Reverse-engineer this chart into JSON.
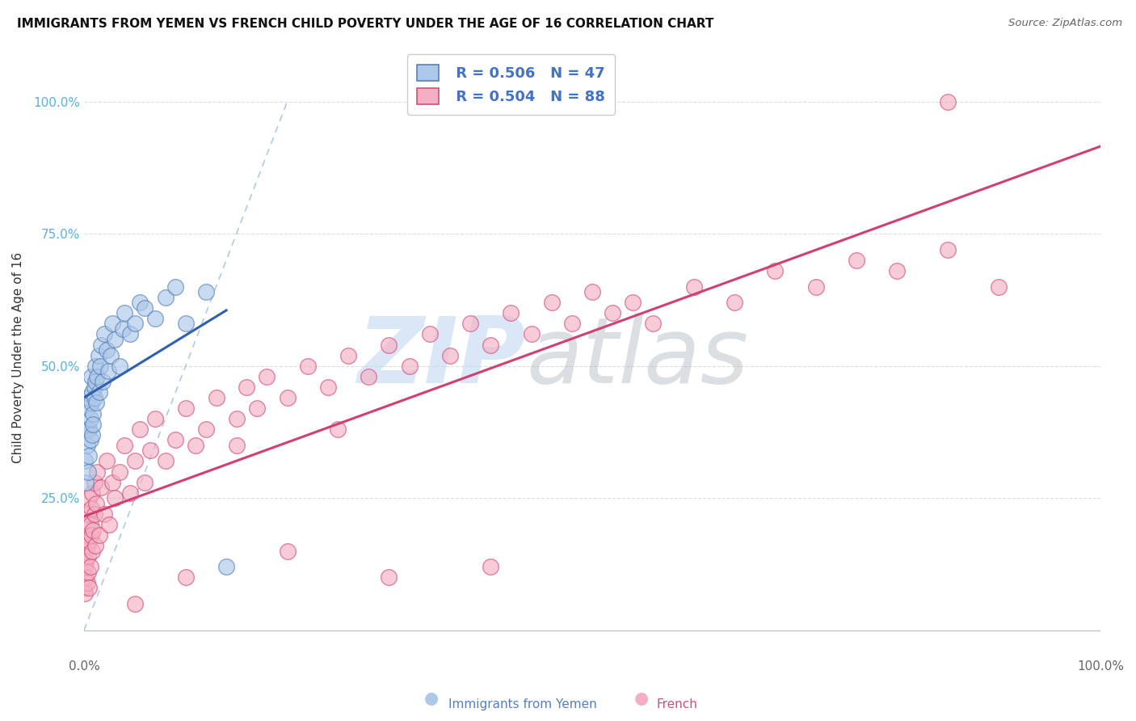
{
  "title": "IMMIGRANTS FROM YEMEN VS FRENCH CHILD POVERTY UNDER THE AGE OF 16 CORRELATION CHART",
  "source": "Source: ZipAtlas.com",
  "ylabel": "Child Poverty Under the Age of 16",
  "blue_R": 0.506,
  "blue_N": 47,
  "pink_R": 0.504,
  "pink_N": 88,
  "blue_label": "Immigrants from Yemen",
  "pink_label": "French",
  "blue_face_color": "#adc8e8",
  "pink_face_color": "#f5afc5",
  "blue_edge_color": "#5580bb",
  "pink_edge_color": "#d05078",
  "blue_line_color": "#3060b0",
  "pink_line_color": "#d04070",
  "ref_line_color": "#9ab8d8",
  "title_color": "#111111",
  "source_color": "#666666",
  "background_color": "#ffffff",
  "grid_color": "#dddddd",
  "ytick_color": "#5ab0e0",
  "legend_val_color": "#4472c4",
  "seed": 42,
  "blue_x": [
    0.001,
    0.002,
    0.002,
    0.003,
    0.003,
    0.004,
    0.004,
    0.005,
    0.005,
    0.006,
    0.006,
    0.007,
    0.007,
    0.008,
    0.008,
    0.009,
    0.009,
    0.01,
    0.01,
    0.011,
    0.011,
    0.012,
    0.013,
    0.014,
    0.015,
    0.016,
    0.017,
    0.018,
    0.02,
    0.022,
    0.024,
    0.026,
    0.028,
    0.03,
    0.035,
    0.038,
    0.04,
    0.045,
    0.05,
    0.055,
    0.06,
    0.07,
    0.08,
    0.09,
    0.1,
    0.12,
    0.14
  ],
  "blue_y": [
    0.32,
    0.38,
    0.28,
    0.42,
    0.35,
    0.3,
    0.44,
    0.38,
    0.33,
    0.4,
    0.36,
    0.43,
    0.48,
    0.37,
    0.45,
    0.41,
    0.39,
    0.46,
    0.44,
    0.5,
    0.47,
    0.43,
    0.48,
    0.52,
    0.45,
    0.5,
    0.54,
    0.47,
    0.56,
    0.53,
    0.49,
    0.52,
    0.58,
    0.55,
    0.5,
    0.57,
    0.6,
    0.56,
    0.58,
    0.62,
    0.61,
    0.59,
    0.63,
    0.65,
    0.58,
    0.64,
    0.12
  ],
  "pink_x": [
    0.0,
    0.001,
    0.001,
    0.001,
    0.002,
    0.002,
    0.002,
    0.003,
    0.003,
    0.003,
    0.004,
    0.004,
    0.004,
    0.005,
    0.005,
    0.005,
    0.006,
    0.006,
    0.007,
    0.007,
    0.008,
    0.008,
    0.009,
    0.01,
    0.01,
    0.011,
    0.012,
    0.013,
    0.015,
    0.017,
    0.02,
    0.022,
    0.025,
    0.028,
    0.03,
    0.035,
    0.04,
    0.045,
    0.05,
    0.055,
    0.06,
    0.065,
    0.07,
    0.08,
    0.09,
    0.1,
    0.11,
    0.12,
    0.13,
    0.15,
    0.16,
    0.17,
    0.18,
    0.2,
    0.22,
    0.24,
    0.26,
    0.28,
    0.3,
    0.32,
    0.34,
    0.36,
    0.38,
    0.4,
    0.42,
    0.44,
    0.46,
    0.48,
    0.5,
    0.52,
    0.54,
    0.56,
    0.6,
    0.64,
    0.68,
    0.72,
    0.76,
    0.8,
    0.85,
    0.9,
    0.1,
    0.2,
    0.4,
    0.05,
    0.3,
    0.25,
    0.15,
    0.85
  ],
  "pink_y": [
    0.08,
    0.12,
    0.07,
    0.15,
    0.1,
    0.13,
    0.18,
    0.09,
    0.16,
    0.2,
    0.11,
    0.14,
    0.22,
    0.08,
    0.17,
    0.25,
    0.12,
    0.2,
    0.18,
    0.23,
    0.15,
    0.26,
    0.19,
    0.22,
    0.28,
    0.16,
    0.24,
    0.3,
    0.18,
    0.27,
    0.22,
    0.32,
    0.2,
    0.28,
    0.25,
    0.3,
    0.35,
    0.26,
    0.32,
    0.38,
    0.28,
    0.34,
    0.4,
    0.32,
    0.36,
    0.42,
    0.35,
    0.38,
    0.44,
    0.4,
    0.46,
    0.42,
    0.48,
    0.44,
    0.5,
    0.46,
    0.52,
    0.48,
    0.54,
    0.5,
    0.56,
    0.52,
    0.58,
    0.54,
    0.6,
    0.56,
    0.62,
    0.58,
    0.64,
    0.6,
    0.62,
    0.58,
    0.65,
    0.62,
    0.68,
    0.65,
    0.7,
    0.68,
    0.72,
    0.65,
    0.1,
    0.15,
    0.12,
    0.05,
    0.1,
    0.38,
    0.35,
    1.0
  ]
}
